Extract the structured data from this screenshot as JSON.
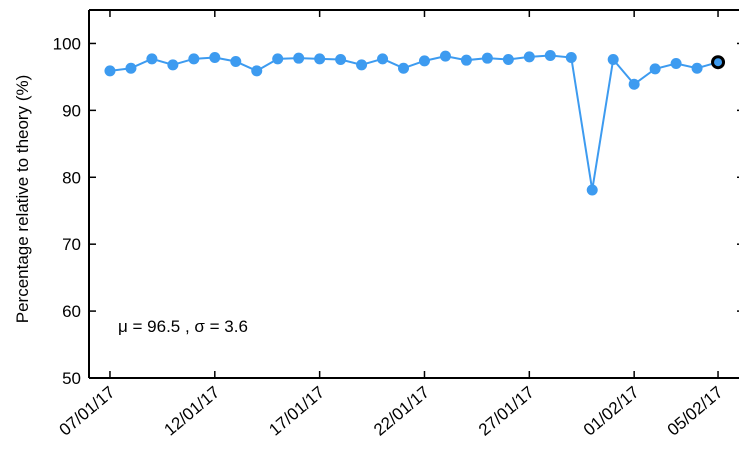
{
  "chart_data": {
    "type": "line",
    "title": "",
    "xlabel": "",
    "ylabel": "Percentage relative to theory (%)",
    "ylim": [
      50,
      105
    ],
    "yticks": [
      50,
      60,
      70,
      80,
      90,
      100
    ],
    "grid": false,
    "x_tick_labels": [
      {
        "date": "2017-01-07",
        "label": "07/01/17"
      },
      {
        "date": "2017-01-12",
        "label": "12/01/17"
      },
      {
        "date": "2017-01-17",
        "label": "17/01/17"
      },
      {
        "date": "2017-01-22",
        "label": "22/01/17"
      },
      {
        "date": "2017-01-27",
        "label": "27/01/17"
      },
      {
        "date": "2017-02-01",
        "label": "01/02/17"
      },
      {
        "date": "2017-02-05",
        "label": "05/02/17"
      }
    ],
    "series": [
      {
        "color": "#3d9bf0",
        "points": [
          {
            "x": "2017-01-07",
            "y": 95.9
          },
          {
            "x": "2017-01-08",
            "y": 96.3
          },
          {
            "x": "2017-01-09",
            "y": 97.7
          },
          {
            "x": "2017-01-10",
            "y": 96.8
          },
          {
            "x": "2017-01-11",
            "y": 97.7
          },
          {
            "x": "2017-01-12",
            "y": 97.9
          },
          {
            "x": "2017-01-13",
            "y": 97.3
          },
          {
            "x": "2017-01-14",
            "y": 95.9
          },
          {
            "x": "2017-01-15",
            "y": 97.7
          },
          {
            "x": "2017-01-16",
            "y": 97.8
          },
          {
            "x": "2017-01-17",
            "y": 97.7
          },
          {
            "x": "2017-01-18",
            "y": 97.6
          },
          {
            "x": "2017-01-19",
            "y": 96.8
          },
          {
            "x": "2017-01-20",
            "y": 97.7
          },
          {
            "x": "2017-01-21",
            "y": 96.3
          },
          {
            "x": "2017-01-22",
            "y": 97.4
          },
          {
            "x": "2017-01-23",
            "y": 98.1
          },
          {
            "x": "2017-01-24",
            "y": 97.5
          },
          {
            "x": "2017-01-25",
            "y": 97.8
          },
          {
            "x": "2017-01-26",
            "y": 97.6
          },
          {
            "x": "2017-01-27",
            "y": 98.0
          },
          {
            "x": "2017-01-28",
            "y": 98.2
          },
          {
            "x": "2017-01-29",
            "y": 97.9
          },
          {
            "x": "2017-01-30",
            "y": 78.1
          },
          {
            "x": "2017-01-31",
            "y": 97.6
          },
          {
            "x": "2017-02-01",
            "y": 93.9
          },
          {
            "x": "2017-02-02",
            "y": 96.2
          },
          {
            "x": "2017-02-03",
            "y": 97.0
          },
          {
            "x": "2017-02-04",
            "y": 96.3
          },
          {
            "x": "2017-02-05",
            "y": 97.2
          }
        ],
        "highlight_last": {
          "fill": "#3d9bf0",
          "stroke": "#000000"
        }
      }
    ],
    "annotations": [
      {
        "text": "μ = 96.5 , σ = 3.6"
      }
    ]
  }
}
